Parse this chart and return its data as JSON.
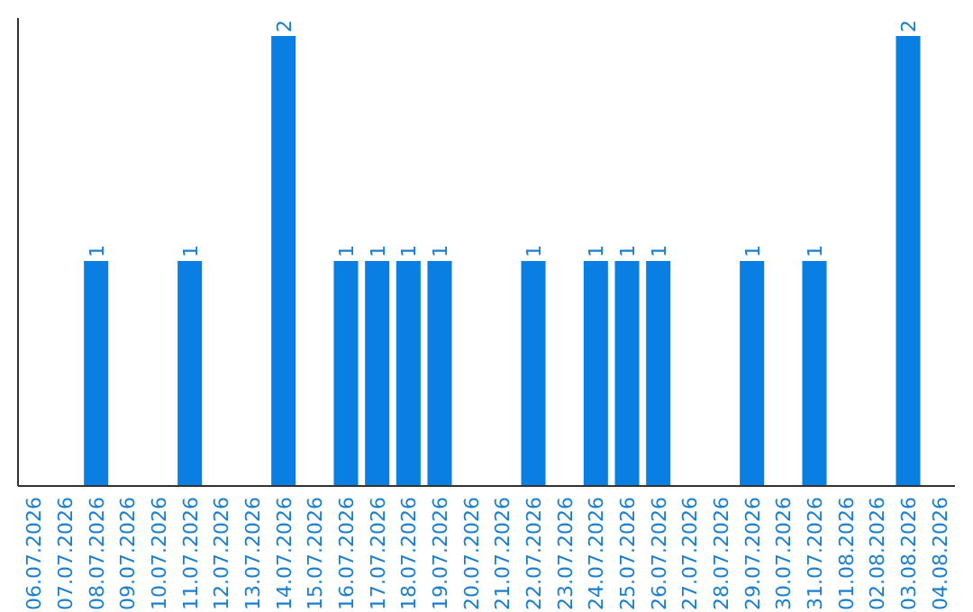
{
  "chart_data": {
    "type": "bar",
    "categories": [
      "06.07.2026",
      "07.07.2026",
      "08.07.2026",
      "09.07.2026",
      "10.07.2026",
      "11.07.2026",
      "12.07.2026",
      "13.07.2026",
      "14.07.2026",
      "15.07.2026",
      "16.07.2026",
      "17.07.2026",
      "18.07.2026",
      "19.07.2026",
      "20.07.2026",
      "21.07.2026",
      "22.07.2026",
      "23.07.2026",
      "24.07.2026",
      "25.07.2026",
      "26.07.2026",
      "27.07.2026",
      "28.07.2026",
      "29.07.2026",
      "30.07.2026",
      "31.07.2026",
      "01.08.2026",
      "02.08.2026",
      "03.08.2026",
      "04.08.2026"
    ],
    "values": [
      0,
      0,
      1,
      0,
      0,
      1,
      0,
      0,
      2,
      0,
      1,
      1,
      1,
      1,
      0,
      0,
      1,
      0,
      1,
      1,
      1,
      0,
      0,
      1,
      0,
      1,
      0,
      0,
      2,
      0
    ],
    "value_labels": [
      null,
      null,
      "1",
      null,
      null,
      "1",
      null,
      null,
      "2",
      null,
      "1",
      "1",
      "1",
      "1",
      null,
      null,
      "1",
      null,
      "1",
      "1",
      "1",
      null,
      null,
      "1",
      null,
      "1",
      null,
      null,
      "2",
      null
    ],
    "color": "#0a7fe3",
    "tick_labels": "x"
  }
}
